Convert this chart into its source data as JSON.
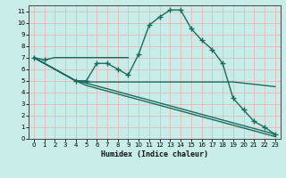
{
  "xlabel": "Humidex (Indice chaleur)",
  "bg_color": "#c8ece8",
  "grid_color": "#e8b8b8",
  "line_color": "#1a6b5e",
  "xlim": [
    -0.5,
    23.5
  ],
  "ylim": [
    0,
    11.5
  ],
  "xticks": [
    0,
    1,
    2,
    3,
    4,
    5,
    6,
    7,
    8,
    9,
    10,
    11,
    12,
    13,
    14,
    15,
    16,
    17,
    18,
    19,
    20,
    21,
    22,
    23
  ],
  "yticks": [
    0,
    1,
    2,
    3,
    4,
    5,
    6,
    7,
    8,
    9,
    10,
    11
  ],
  "series": [
    {
      "x": [
        0,
        1,
        2,
        3,
        4,
        5,
        6,
        7,
        8,
        9
      ],
      "y": [
        7,
        6.8,
        7,
        7,
        7,
        7,
        7,
        7,
        7,
        7
      ],
      "marker": true,
      "marker_at": [
        1
      ]
    },
    {
      "x": [
        0,
        4,
        5,
        6,
        7,
        8,
        9,
        10,
        11,
        12,
        13,
        14,
        15,
        16,
        17,
        18,
        19,
        20,
        21,
        22,
        23
      ],
      "y": [
        7,
        5,
        5,
        6.5,
        6.5,
        6.0,
        5.5,
        7.3,
        9.8,
        10.5,
        11.1,
        11.1,
        9.5,
        8.5,
        7.7,
        6.5,
        3.5,
        2.5,
        1.5,
        1.0,
        0.4
      ],
      "marker": true
    },
    {
      "x": [
        0,
        4,
        5,
        9,
        14,
        19,
        23
      ],
      "y": [
        7,
        5,
        4.9,
        4.9,
        4.9,
        4.9,
        4.5
      ],
      "marker": false
    },
    {
      "x": [
        0,
        4,
        5,
        23
      ],
      "y": [
        7,
        5,
        4.8,
        0.4
      ],
      "marker": false
    },
    {
      "x": [
        0,
        4,
        5,
        23
      ],
      "y": [
        7,
        5,
        4.6,
        0.2
      ],
      "marker": false
    }
  ]
}
